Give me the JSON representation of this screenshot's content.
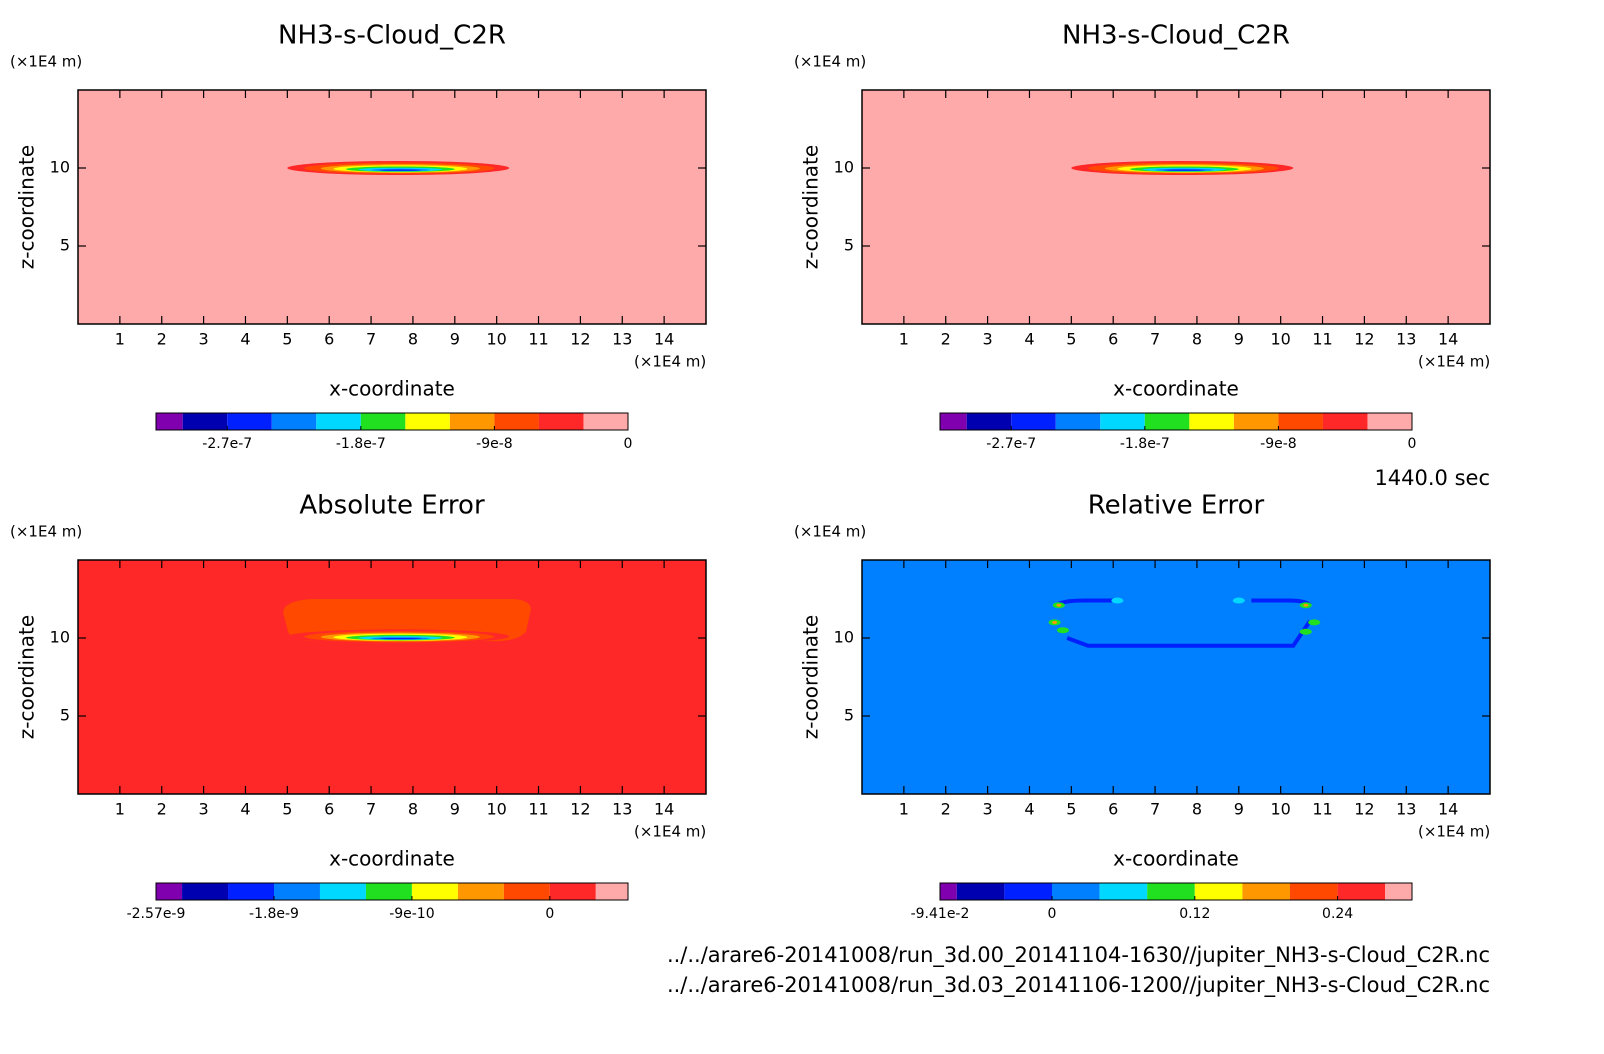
{
  "chart_data": [
    {
      "type": "contour",
      "title": "NH3-s-Cloud_C2R",
      "x_label": "x-coordinate",
      "y_label": "z-coordinate",
      "x_unit": "(×1E4 m)",
      "y_unit": "(×1E4 m)",
      "xlim": [
        0,
        15
      ],
      "ylim": [
        0,
        15
      ],
      "xticks": [
        1,
        2,
        3,
        4,
        5,
        6,
        7,
        8,
        9,
        10,
        11,
        12,
        13,
        14
      ],
      "yticks": [
        5,
        10
      ],
      "colorbar": {
        "levels": [
          -3.18e-07,
          -3e-07,
          -2.7e-07,
          -2.4e-07,
          -2.1e-07,
          -1.8e-07,
          -1.5e-07,
          -1.2e-07,
          -9e-08,
          -6e-08,
          -3e-08,
          0
        ],
        "colors": [
          "#8000b0",
          "#0000b0",
          "#0020ff",
          "#0080ff",
          "#00d8ff",
          "#20e020",
          "#ffff00",
          "#ff9800",
          "#ff4800",
          "#ff2828",
          "#ffaaaa"
        ],
        "ticks": [
          {
            "value": -2.7e-07,
            "label": "-2.7e-7"
          },
          {
            "value": -1.8e-07,
            "label": "-1.8e-7"
          },
          {
            "value": -9e-08,
            "label": "-9e-8"
          },
          0
        ]
      }
    },
    {
      "type": "contour",
      "title": "NH3-s-Cloud_C2R",
      "x_label": "x-coordinate",
      "y_label": "z-coordinate",
      "x_unit": "(×1E4 m)",
      "y_unit": "(×1E4 m)",
      "xlim": [
        0,
        15
      ],
      "ylim": [
        0,
        15
      ],
      "xticks": [
        1,
        2,
        3,
        4,
        5,
        6,
        7,
        8,
        9,
        10,
        11,
        12,
        13,
        14
      ],
      "yticks": [
        5,
        10
      ],
      "colorbar": {
        "levels": [
          -3.18e-07,
          -3e-07,
          -2.7e-07,
          -2.4e-07,
          -2.1e-07,
          -1.8e-07,
          -1.5e-07,
          -1.2e-07,
          -9e-08,
          -6e-08,
          -3e-08,
          0
        ],
        "colors": [
          "#8000b0",
          "#0000b0",
          "#0020ff",
          "#0080ff",
          "#00d8ff",
          "#20e020",
          "#ffff00",
          "#ff9800",
          "#ff4800",
          "#ff2828",
          "#ffaaaa"
        ],
        "ticks": [
          {
            "value": -2.7e-07,
            "label": "-2.7e-7"
          },
          {
            "value": -1.8e-07,
            "label": "-1.8e-7"
          },
          {
            "value": -9e-08,
            "label": "-9e-8"
          },
          0
        ]
      }
    },
    {
      "type": "contour",
      "title": "Absolute Error",
      "x_label": "x-coordinate",
      "y_label": "z-coordinate",
      "x_unit": "(×1E4 m)",
      "y_unit": "(×1E4 m)",
      "xlim": [
        0,
        15
      ],
      "ylim": [
        0,
        15
      ],
      "xticks": [
        1,
        2,
        3,
        4,
        5,
        6,
        7,
        8,
        9,
        10,
        11,
        12,
        13,
        14
      ],
      "yticks": [
        5,
        10
      ],
      "colorbar": {
        "levels": [
          -2.57e-09,
          -2.4e-09,
          -2.1e-09,
          -1.8e-09,
          -1.5e-09,
          -1.2e-09,
          -9e-10,
          -6e-10,
          -3e-10,
          0,
          3e-10,
          5.1e-10
        ],
        "colors": [
          "#8000b0",
          "#0000b0",
          "#0020ff",
          "#0080ff",
          "#00d8ff",
          "#20e020",
          "#ffff00",
          "#ff9800",
          "#ff4800",
          "#ff2828",
          "#ffaaaa"
        ],
        "ticks": [
          {
            "value": -2.57e-09,
            "label": "-2.57e-9"
          },
          {
            "value": -1.8e-09,
            "label": "-1.8e-9"
          },
          {
            "value": -9e-10,
            "label": "-9e-10"
          },
          0
        ]
      }
    },
    {
      "type": "contour",
      "title": "Relative Error",
      "x_label": "x-coordinate",
      "y_label": "z-coordinate",
      "x_unit": "(×1E4 m)",
      "y_unit": "(×1E4 m)",
      "xlim": [
        0,
        15
      ],
      "ylim": [
        0,
        15
      ],
      "xticks": [
        1,
        2,
        3,
        4,
        5,
        6,
        7,
        8,
        9,
        10,
        11,
        12,
        13,
        14
      ],
      "yticks": [
        5,
        10
      ],
      "colorbar": {
        "levels": [
          -0.0941,
          -0.08,
          -0.04,
          0,
          0.04,
          0.08,
          0.12,
          0.16,
          0.2,
          0.24,
          0.28,
          0.3025
        ],
        "colors": [
          "#8000b0",
          "#0000b0",
          "#0020ff",
          "#0080ff",
          "#00d8ff",
          "#20e020",
          "#ffff00",
          "#ff9800",
          "#ff4800",
          "#ff2828",
          "#ffaaaa"
        ],
        "ticks": [
          {
            "value": -0.0941,
            "label": "-9.41e-2"
          },
          0,
          0.12,
          0.24
        ]
      }
    }
  ],
  "time_label": "1440.0 sec",
  "files": [
    "../../arare6-20141008/run_3d.00_20141104-1630//jupiter_NH3-s-Cloud_C2R.nc",
    "../../arare6-20141008/run_3d.03_20141106-1200//jupiter_NH3-s-Cloud_C2R.nc"
  ]
}
